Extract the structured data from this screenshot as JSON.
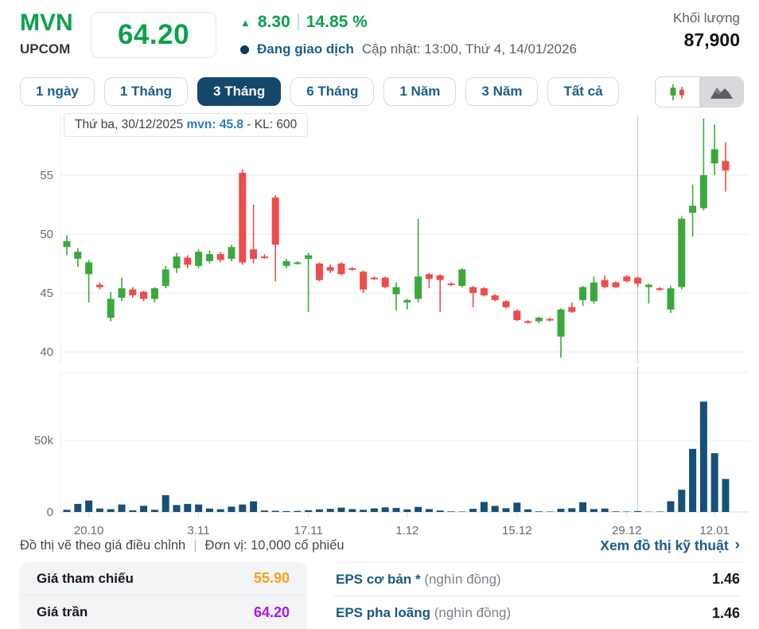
{
  "header": {
    "symbol": "MVN",
    "exchange": "UPCOM",
    "price": "64.20",
    "change_arrow": "▲",
    "change_value": "8.30",
    "change_percent": "14.85 %",
    "status": "Đang giao dịch",
    "updated": "Cập nhật: 13:00, Thứ 4, 14/01/2026",
    "volume_label": "Khối lượng",
    "volume_value": "87,900"
  },
  "range_tabs": [
    {
      "label": "1 ngày",
      "active": false
    },
    {
      "label": "1 Tháng",
      "active": false
    },
    {
      "label": "3 Tháng",
      "active": true
    },
    {
      "label": "6 Tháng",
      "active": false
    },
    {
      "label": "1 Năm",
      "active": false
    },
    {
      "label": "3 Năm",
      "active": false
    },
    {
      "label": "Tất cả",
      "active": false
    }
  ],
  "chart_type_toggle": {
    "selected": "candlestick",
    "options": [
      "candlestick",
      "area"
    ]
  },
  "tooltip": {
    "date": "Thứ ba, 30/12/2025",
    "pair": "mvn: 45.8",
    "vol": "- KL: 600"
  },
  "chart_note": {
    "left1": "Đồ thị vẽ theo giá điều chỉnh",
    "divider": "|",
    "left2": "Đơn vị: 10,000 cổ phiếu"
  },
  "tech_link": {
    "label": "Xem đồ thị kỹ thuật",
    "chevron": "›"
  },
  "info_table_left": {
    "rows": [
      {
        "label": "Giá tham chiếu",
        "value": "55.90",
        "color": "#f7a01b"
      },
      {
        "label": "Giá trần",
        "value": "64.20",
        "color": "#ad14f0"
      }
    ]
  },
  "info_table_right": {
    "rows": [
      {
        "label": "EPS cơ bản",
        "suffix": " *",
        "unit": " (nghìn đồng)",
        "value": "1.46"
      },
      {
        "label": "EPS pha loãng",
        "suffix": "",
        "unit": " (nghìn đồng)",
        "value": "1.46"
      }
    ]
  },
  "chart_data": {
    "type": "candlestick+volume",
    "symbol": "MVN",
    "period": "3 Tháng",
    "price_axis": {
      "ticks": [
        40,
        45,
        50,
        55
      ],
      "range": [
        39.0,
        60.3
      ]
    },
    "volume_axis": {
      "ticks": [
        {
          "v": 0,
          "label": "0"
        },
        {
          "v": 50000,
          "label": "50k"
        }
      ],
      "max": 97000
    },
    "x_ticks": [
      {
        "label": "20.10",
        "index": 2
      },
      {
        "label": "3.11",
        "index": 12
      },
      {
        "label": "17.11",
        "index": 22
      },
      {
        "label": "1.12",
        "index": 31
      },
      {
        "label": "15.12",
        "index": 41
      },
      {
        "label": "29.12",
        "index": 51
      },
      {
        "label": "12.01",
        "index": 59
      }
    ],
    "crosshair_index": 52,
    "candles": [
      [
        48.9,
        49.9,
        48.2,
        49.4
      ],
      [
        47.9,
        48.8,
        47.2,
        48.5
      ],
      [
        46.6,
        47.8,
        44.2,
        47.6
      ],
      [
        45.7,
        45.9,
        45.3,
        45.5
      ],
      [
        42.9,
        45.1,
        42.6,
        44.5
      ],
      [
        44.6,
        46.3,
        44.3,
        45.4
      ],
      [
        45.3,
        45.5,
        44.6,
        44.8
      ],
      [
        45.1,
        45.2,
        44.3,
        44.5
      ],
      [
        44.5,
        45.5,
        44.2,
        45.4
      ],
      [
        45.6,
        47.3,
        45.4,
        47.0
      ],
      [
        47.1,
        48.4,
        46.7,
        48.1
      ],
      [
        48.0,
        48.2,
        47.1,
        47.4
      ],
      [
        47.3,
        48.7,
        47.1,
        48.5
      ],
      [
        47.7,
        48.6,
        47.5,
        48.3
      ],
      [
        48.3,
        48.5,
        47.6,
        47.8
      ],
      [
        47.9,
        49.1,
        47.7,
        48.9
      ],
      [
        55.2,
        55.5,
        47.4,
        47.6
      ],
      [
        48.7,
        52.5,
        47.5,
        47.9
      ],
      [
        48.1,
        48.3,
        47.9,
        48.0
      ],
      [
        53.1,
        53.3,
        46.0,
        49.1
      ],
      [
        47.3,
        47.9,
        47.1,
        47.7
      ],
      [
        47.5,
        47.7,
        47.4,
        47.6
      ],
      [
        47.9,
        48.4,
        43.4,
        48.2
      ],
      [
        47.5,
        47.6,
        46.0,
        46.1
      ],
      [
        47.2,
        47.4,
        46.7,
        46.9
      ],
      [
        47.5,
        47.6,
        46.5,
        46.6
      ],
      [
        47.1,
        47.2,
        46.9,
        47.0
      ],
      [
        46.8,
        46.9,
        45.0,
        45.3
      ],
      [
        46.3,
        46.4,
        46.1,
        46.2
      ],
      [
        46.3,
        46.4,
        45.4,
        45.5
      ],
      [
        44.9,
        45.9,
        43.5,
        45.5
      ],
      [
        44.2,
        44.5,
        43.6,
        44.4
      ],
      [
        44.5,
        51.3,
        44.2,
        46.4
      ],
      [
        46.6,
        46.7,
        45.4,
        46.2
      ],
      [
        46.5,
        46.6,
        43.4,
        46.1
      ],
      [
        45.8,
        45.9,
        45.6,
        45.7
      ],
      [
        45.6,
        47.1,
        45.5,
        47.0
      ],
      [
        45.5,
        45.6,
        43.8,
        45.0
      ],
      [
        45.4,
        45.5,
        44.7,
        44.8
      ],
      [
        44.8,
        44.9,
        44.3,
        44.4
      ],
      [
        44.3,
        44.4,
        43.7,
        43.8
      ],
      [
        43.5,
        43.6,
        42.6,
        42.7
      ],
      [
        42.6,
        42.7,
        42.4,
        42.5
      ],
      [
        42.6,
        43.0,
        42.4,
        42.9
      ],
      [
        42.8,
        42.9,
        42.6,
        42.7
      ],
      [
        41.3,
        43.7,
        39.5,
        43.6
      ],
      [
        43.8,
        44.2,
        43.3,
        43.4
      ],
      [
        44.4,
        45.6,
        43.9,
        45.5
      ],
      [
        44.3,
        46.4,
        44.1,
        45.9
      ],
      [
        46.1,
        46.5,
        45.4,
        45.5
      ],
      [
        45.9,
        46.0,
        45.4,
        45.5
      ],
      [
        46.4,
        46.5,
        45.9,
        46.0
      ],
      [
        46.3,
        46.4,
        45.5,
        45.8
      ],
      [
        45.5,
        45.8,
        44.1,
        45.7
      ],
      [
        45.4,
        45.5,
        45.2,
        45.3
      ],
      [
        43.6,
        45.6,
        43.3,
        45.4
      ],
      [
        45.5,
        51.5,
        45.3,
        51.3
      ],
      [
        51.8,
        54.2,
        49.8,
        52.4
      ],
      [
        52.2,
        59.8,
        52.0,
        55.0
      ],
      [
        56.0,
        59.3,
        55.0,
        57.2
      ],
      [
        56.2,
        57.8,
        53.6,
        55.4
      ]
    ],
    "volumes": [
      1500,
      5600,
      8000,
      2400,
      1900,
      5200,
      1100,
      4300,
      1500,
      11700,
      4800,
      5600,
      5200,
      2400,
      1900,
      3700,
      5200,
      7400,
      1000,
      800,
      600,
      700,
      1200,
      1800,
      2200,
      3000,
      2000,
      1500,
      2500,
      3200,
      2800,
      1800,
      3500,
      2000,
      1000,
      400,
      300,
      2200,
      7000,
      4200,
      2600,
      6500,
      1800,
      400,
      300,
      2200,
      2600,
      6800,
      2000,
      2400,
      400,
      300,
      600,
      200,
      300,
      7500,
      15500,
      44000,
      77000,
      41000,
      23000
    ],
    "colors": {
      "up": "#3aa93c",
      "down": "#ef4b4b",
      "volume": "#155079",
      "grid": "#edeef0",
      "axis_line": "#d8dbde",
      "crosshair": "#c6cad0"
    }
  }
}
